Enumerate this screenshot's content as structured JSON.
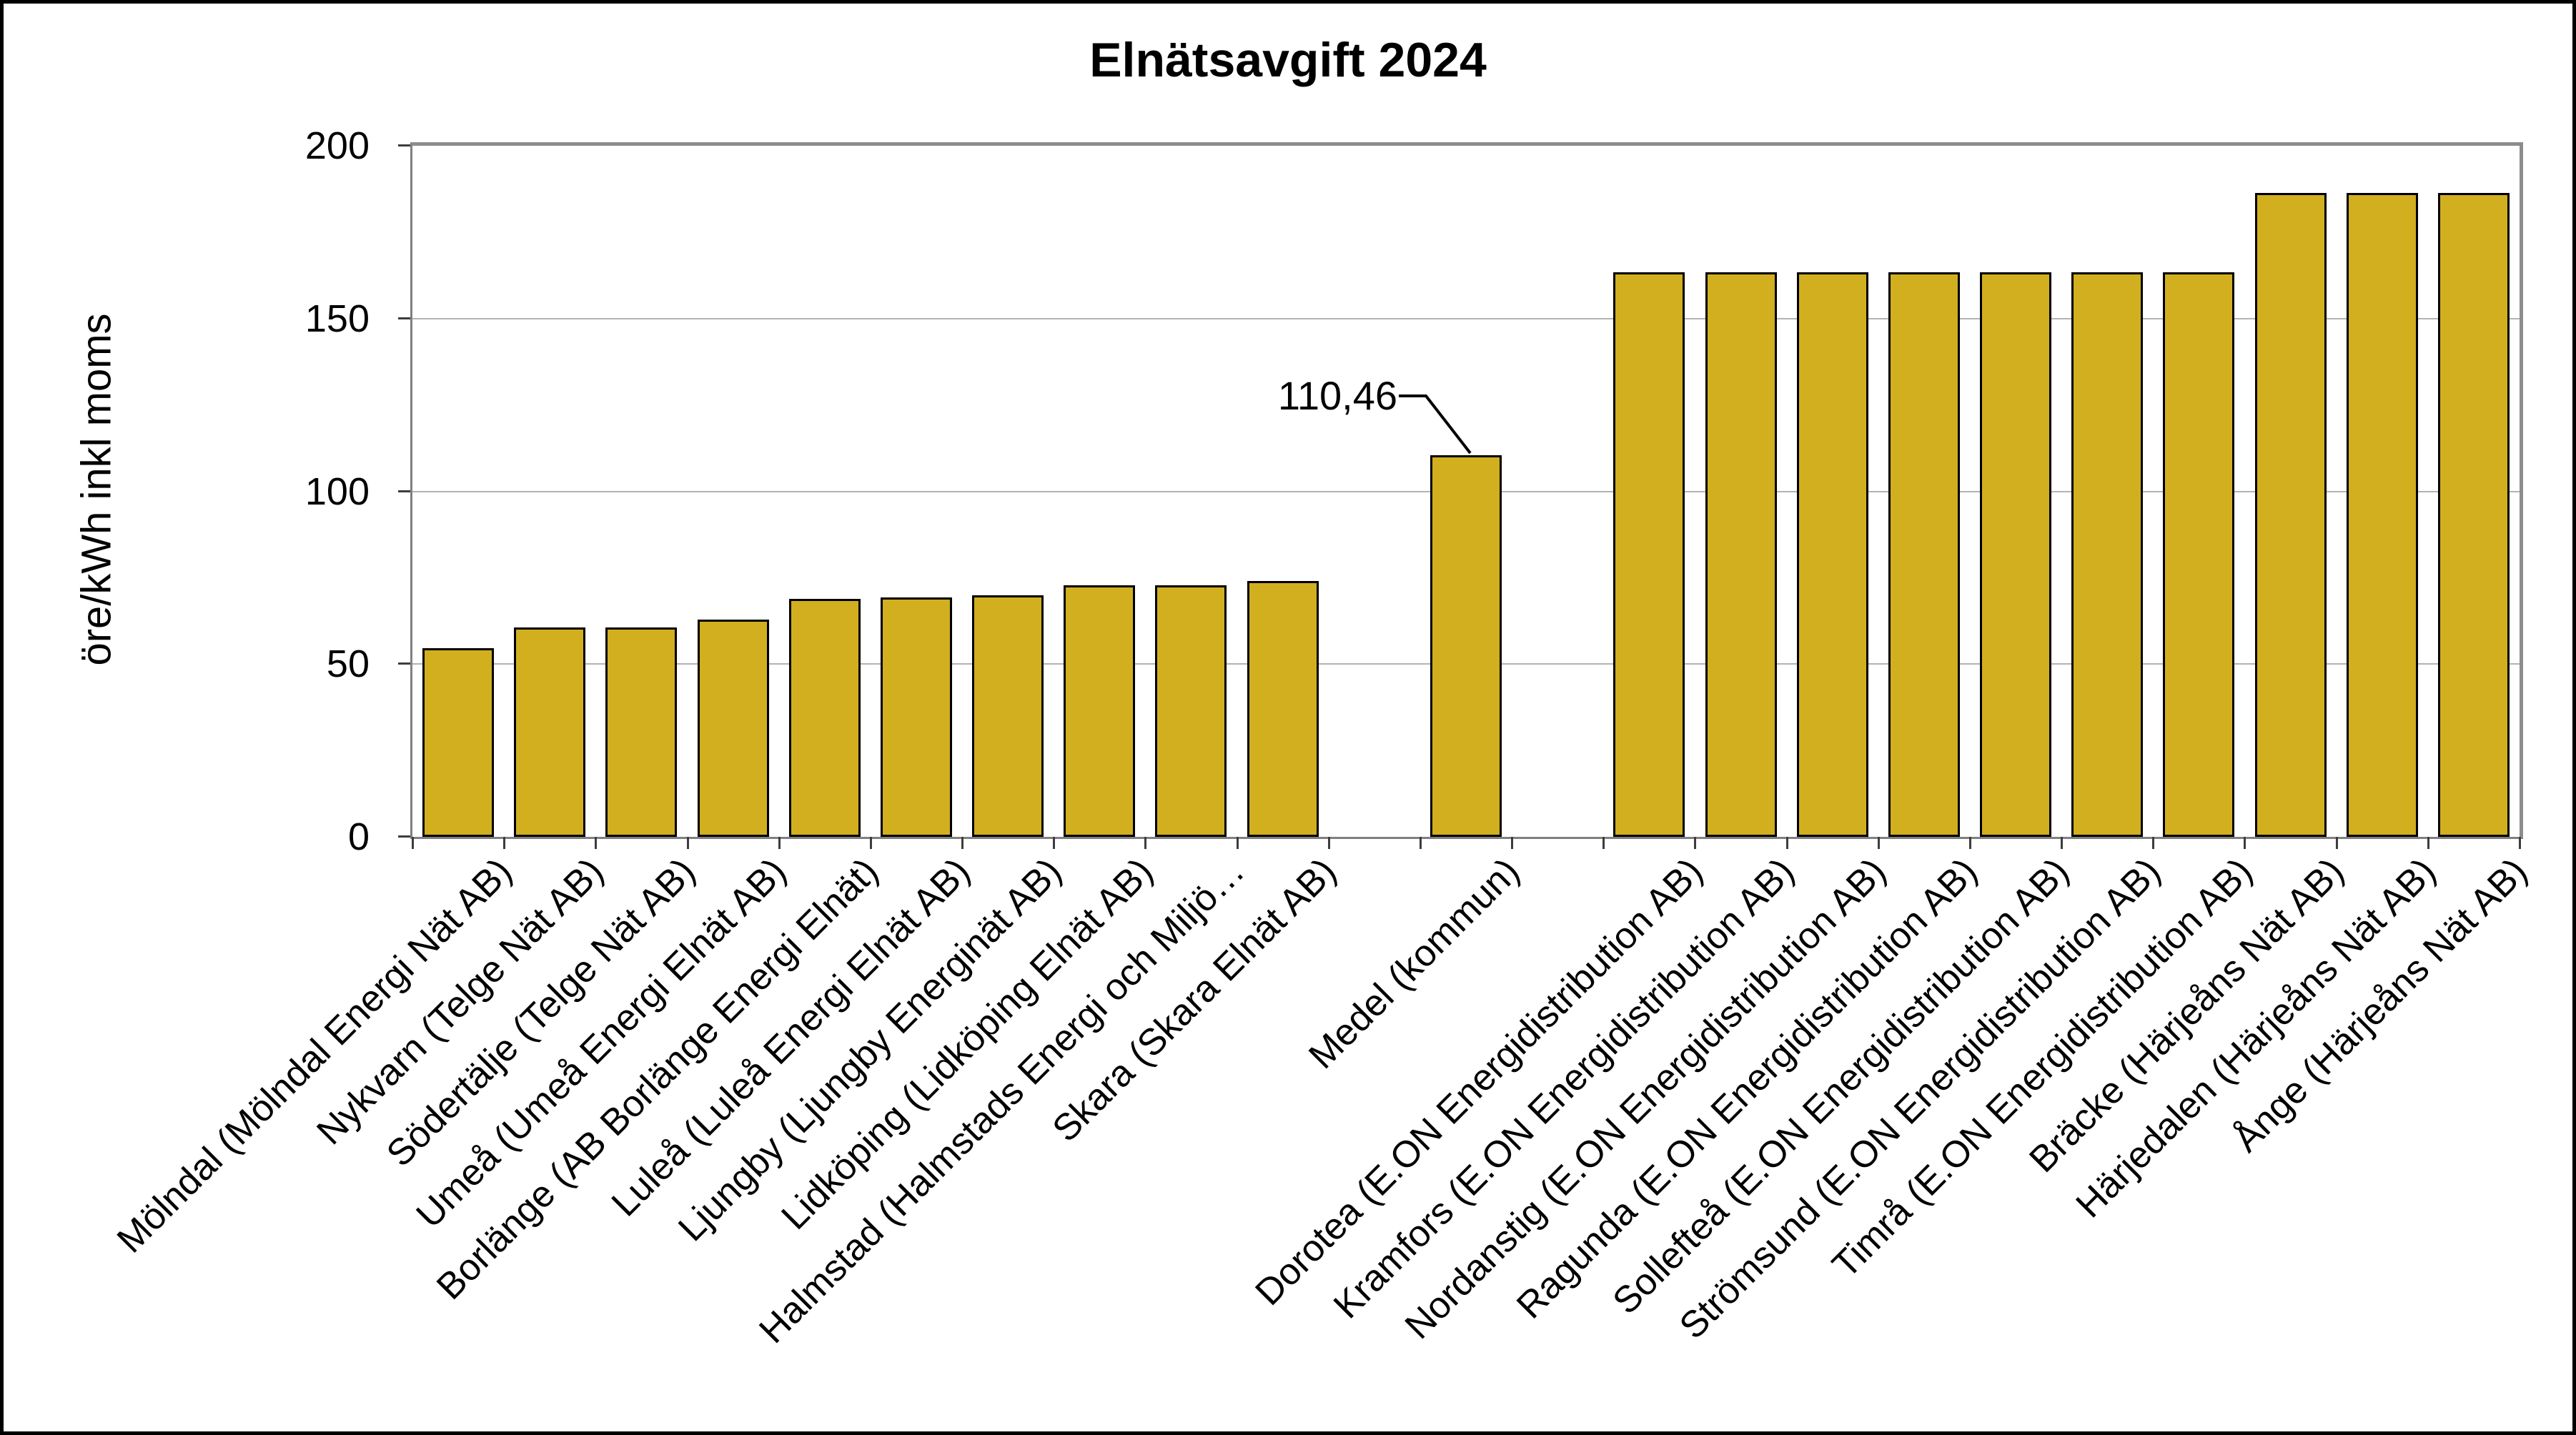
{
  "chart_data": {
    "type": "bar",
    "title": "Elnätsavgift 2024",
    "ylabel": "öre/kWh inkl moms",
    "xlabel": "",
    "ylim": [
      0,
      200
    ],
    "yticks": [
      0,
      50,
      100,
      150,
      200
    ],
    "grid": "horizontal",
    "legend": "none",
    "bar_color": "#D1AF1F",
    "bar_border_color": "#000000",
    "total_slots": 23,
    "annotation": {
      "text": "110,46",
      "target_category": "Medel (kommun)",
      "value": 110.46
    },
    "categories": [
      "Mölndal (Mölndal Energi Nät AB)",
      "Nykvarn (Telge Nät AB)",
      "Södertälje (Telge Nät AB)",
      "Umeå (Umeå Energi Elnät AB)",
      "Borlänge (AB Borlänge Energi Elnät)",
      "Luleå (Luleå Energi Elnät AB)",
      "Ljungby (Ljungby Energinät AB)",
      "Lidköping (Lidköping Elnät AB)",
      "Halmstad (Halmstads Energi och Miljö…",
      "Skara (Skara Elnät AB)",
      "Medel (kommun)",
      "Dorotea (E.ON Energidistribution AB)",
      "Kramfors (E.ON Energidistribution AB)",
      "Nordanstig (E.ON Energidistribution AB)",
      "Ragunda (E.ON Energidistribution AB)",
      "Sollefteå (E.ON Energidistribution AB)",
      "Strömsund (E.ON Energidistribution AB)",
      "Timrå (E.ON Energidistribution AB)",
      "Bräcke (Härjeåns Nät AB)",
      "Härjedalen (Härjeåns Nät AB)",
      "Ånge (Härjeåns Nät AB)"
    ],
    "values": [
      54.7,
      60.5,
      60.5,
      62.8,
      68.8,
      69.3,
      70.0,
      72.9,
      72.9,
      74.0,
      110.46,
      163.3,
      163.3,
      163.3,
      163.3,
      163.3,
      163.3,
      163.3,
      186.4,
      186.4,
      186.4
    ],
    "slots": [
      0,
      1,
      2,
      3,
      4,
      5,
      6,
      7,
      8,
      9,
      11,
      13,
      14,
      15,
      16,
      17,
      18,
      19,
      20,
      21,
      22
    ]
  }
}
